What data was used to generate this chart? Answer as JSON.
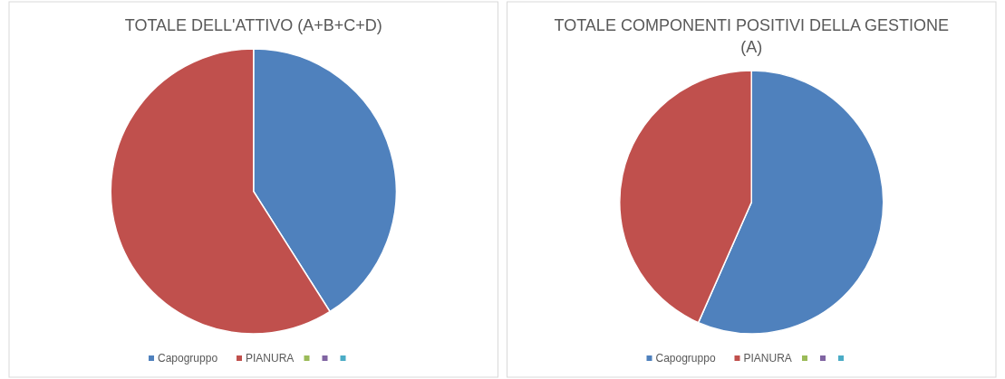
{
  "chart_data": [
    {
      "type": "pie",
      "title": "TOTALE DELL'ATTIVO (A+B+C+D)",
      "categories": [
        "Capogruppo",
        "PIANURA",
        null,
        null,
        null
      ],
      "values": [
        41,
        59,
        0,
        0,
        0
      ],
      "colors": [
        "#4f81bd",
        "#c0504d",
        "#9bbb59",
        "#8064a2",
        "#4bacc6"
      ],
      "legend": "bottom"
    },
    {
      "type": "pie",
      "title": "TOTALE COMPONENTI POSITIVI DELLA GESTIONE (A)",
      "categories": [
        "Capogruppo",
        "PIANURA",
        null,
        null,
        null
      ],
      "values": [
        56.6,
        43.4,
        0,
        0,
        0
      ],
      "colors": [
        "#4f81bd",
        "#c0504d",
        "#9bbb59",
        "#8064a2",
        "#4bacc6"
      ],
      "legend": "bottom"
    }
  ]
}
